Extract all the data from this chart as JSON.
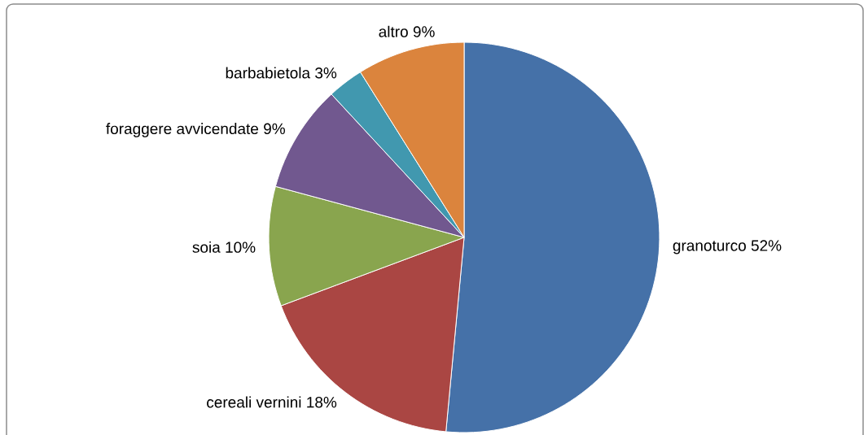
{
  "chart_data": {
    "type": "pie",
    "categories": [
      "granoturco",
      "cereali vernini",
      "soia",
      "foraggere avvicendate",
      "barbabietola",
      "altro"
    ],
    "values": [
      52,
      18,
      10,
      9,
      3,
      9
    ],
    "value_labels": [
      "52%",
      "18%",
      "10%",
      "9%",
      "3%",
      "9%"
    ],
    "colors": [
      "#4571a8",
      "#aa4643",
      "#89a54e",
      "#71588f",
      "#4198af",
      "#db843d"
    ]
  }
}
